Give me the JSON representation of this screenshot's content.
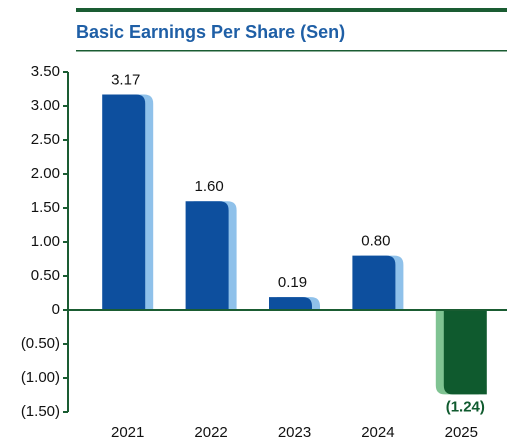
{
  "chart_data": {
    "type": "bar",
    "title": "Basic Earnings Per Share (Sen)",
    "categories": [
      "2021",
      "2022",
      "2023",
      "2024",
      "2025"
    ],
    "values": [
      3.17,
      1.6,
      0.19,
      0.8,
      -1.24
    ],
    "value_labels": [
      "3.17",
      "1.60",
      "0.19",
      "0.80",
      "(1.24)"
    ],
    "color": "#0d4f9e",
    "shade_color": "#8fc1ea",
    "negative_color": "#0f5a2e",
    "negative_shade_color": "#7fc392",
    "axis_color": "#1a5c32",
    "ylim": [
      -1.5,
      3.5
    ],
    "yticks": [
      {
        "value": -1.5,
        "label": "(1.50)"
      },
      {
        "value": -1,
        "label": "(1.00)"
      },
      {
        "value": -0.5,
        "label": "(0.50)"
      },
      0,
      {
        "value": 0.5,
        "label": "0.50"
      },
      {
        "value": 1,
        "label": "1.00"
      },
      {
        "value": 1.5,
        "label": "1.50"
      },
      {
        "value": 2,
        "label": "2.00"
      },
      {
        "value": 2.5,
        "label": "2.50"
      },
      {
        "value": 3,
        "label": "3.00"
      },
      {
        "value": 3.5,
        "label": "3.50"
      }
    ]
  }
}
